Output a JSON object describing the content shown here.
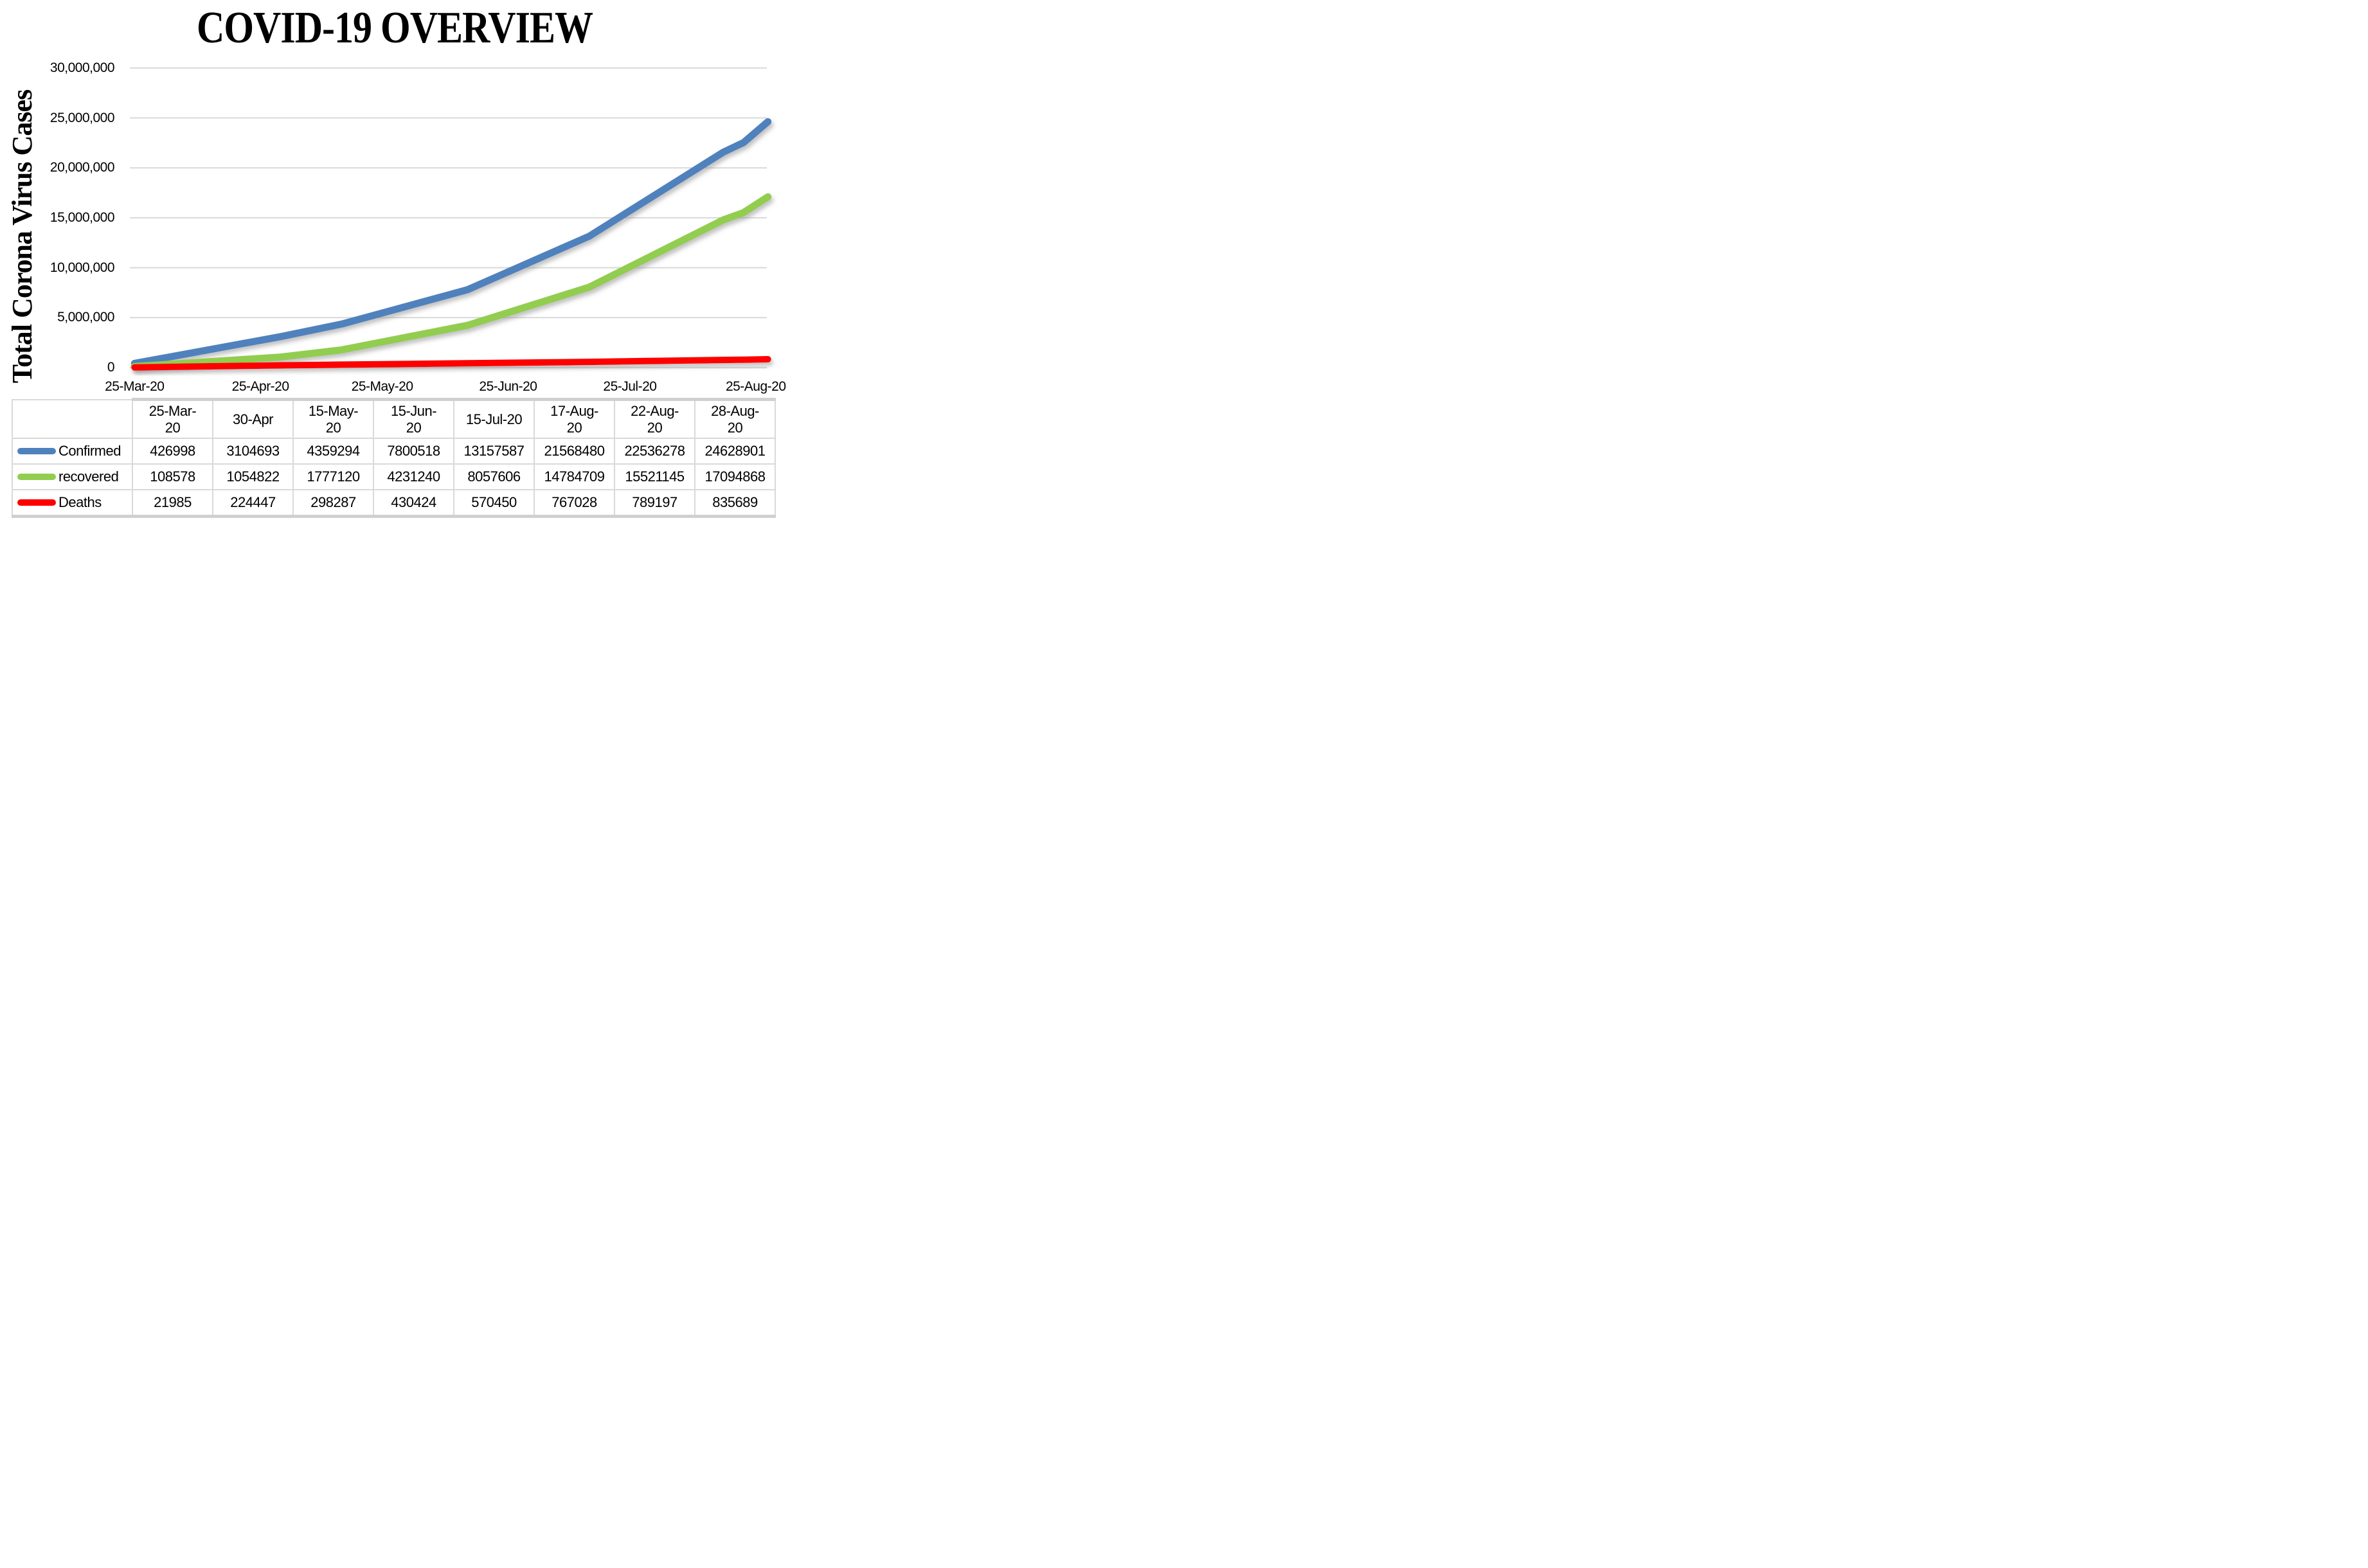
{
  "title": "COVID-19 OVERVIEW",
  "y_axis_title": "Total Corona Virus Cases",
  "colors": {
    "confirmed": "#4F81BD",
    "recovered": "#92CD50",
    "deaths": "#FF0000",
    "gridline": "#D9D9D9",
    "axis_line": "#D9D9D9",
    "table_border": "#D9D9D9",
    "table_thick_bar": "#D0D0D0",
    "text": "#000000",
    "background": "#FFFFFF"
  },
  "chart_data": {
    "type": "line",
    "title": "COVID-19 OVERVIEW",
    "xlabel": "",
    "ylabel": "Total Corona Virus Cases",
    "ylim": [
      0,
      30000000
    ],
    "grid": "horizontal",
    "legend_position": "table-left",
    "y_ticks": [
      {
        "label": "30,000,000",
        "value": 30000000
      },
      {
        "label": "25,000,000",
        "value": 25000000
      },
      {
        "label": "20,000,000",
        "value": 20000000
      },
      {
        "label": "15,000,000",
        "value": 15000000
      },
      {
        "label": "10,000,000",
        "value": 10000000
      },
      {
        "label": "5,000,000",
        "value": 5000000
      },
      {
        "label": "0",
        "value": 0
      }
    ],
    "x_axis_ticks": [
      {
        "label": "25-Mar-20",
        "day": 0
      },
      {
        "label": "25-Apr-20",
        "day": 31
      },
      {
        "label": "25-May-20",
        "day": 61
      },
      {
        "label": "25-Jun-20",
        "day": 92
      },
      {
        "label": "25-Jul-20",
        "day": 122
      },
      {
        "label": "25-Aug-20",
        "day": 153
      }
    ],
    "categories": [
      "25-Mar-20",
      "30-Apr",
      "15-May-20",
      "15-Jun-20",
      "15-Jul-20",
      "17-Aug-20",
      "22-Aug-20",
      "28-Aug-20"
    ],
    "category_header_lines": [
      [
        "25-Mar-",
        "20"
      ],
      [
        "30-Apr"
      ],
      [
        "15-May-",
        "20"
      ],
      [
        "15-Jun-",
        "20"
      ],
      [
        "15-Jul-20"
      ],
      [
        "17-Aug-",
        "20"
      ],
      [
        "22-Aug-",
        "20"
      ],
      [
        "28-Aug-",
        "20"
      ]
    ],
    "x_days": [
      0,
      36,
      51,
      82,
      112,
      145,
      150,
      156
    ],
    "series": [
      {
        "name": "Confirmed",
        "color": "#4F81BD",
        "values": [
          426998,
          3104693,
          4359294,
          7800518,
          13157587,
          21568480,
          22536278,
          24628901
        ]
      },
      {
        "name": "recovered",
        "color": "#92CD50",
        "values": [
          108578,
          1054822,
          1777120,
          4231240,
          8057606,
          14784709,
          15521145,
          17094868
        ]
      },
      {
        "name": "Deaths",
        "color": "#FF0000",
        "values": [
          21985,
          224447,
          298287,
          430424,
          570450,
          767028,
          789197,
          835689
        ]
      }
    ]
  }
}
